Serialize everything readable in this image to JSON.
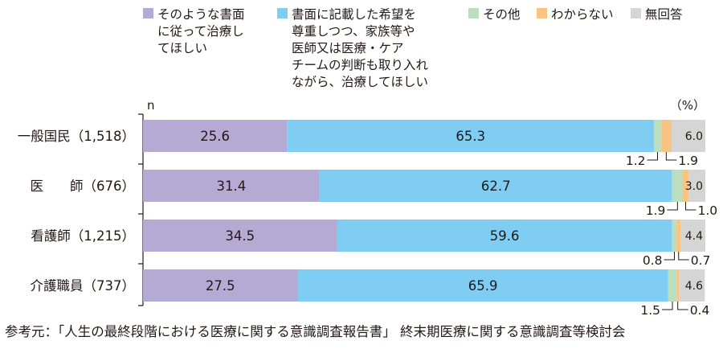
{
  "chart_data": {
    "type": "bar",
    "stacked": true,
    "orientation": "horizontal",
    "unit_label": "（%）",
    "n_label": "n",
    "categories": [
      "一般国民（1,518）",
      "医　　師（676）",
      "看護師（1,215）",
      "介護職員（737）"
    ],
    "series": [
      {
        "name": "そのような書面に従って治療してほしい",
        "legend_lines": [
          "そのような書面",
          "に従って治療し",
          "てほしい"
        ],
        "color": "#b4aad3",
        "values": [
          25.6,
          31.4,
          34.5,
          27.5
        ],
        "labels": [
          "25.6",
          "31.4",
          "34.5",
          "27.5"
        ]
      },
      {
        "name": "書面に記載した希望を尊重しつつ、家族等や医師又は医療・ケアチームの判断も取り入れながら、治療してほしい",
        "legend_lines": [
          "書面に記載した希望を",
          "尊重しつつ、家族等や",
          "医師又は医療・ケア",
          "チームの判断も取り入れ",
          "ながら、治療してほしい"
        ],
        "color": "#7fcdf2",
        "values": [
          65.3,
          62.7,
          59.6,
          65.9
        ],
        "labels": [
          "65.3",
          "62.7",
          "59.6",
          "65.9"
        ]
      },
      {
        "name": "その他",
        "legend_lines": [
          "その他"
        ],
        "color": "#b9dfbf",
        "values": [
          1.2,
          1.9,
          0.8,
          1.5
        ],
        "labels": [
          "1.2",
          "1.9",
          "0.8",
          "1.5"
        ]
      },
      {
        "name": "わからない",
        "legend_lines": [
          "わからない"
        ],
        "color": "#f8c383",
        "values": [
          1.9,
          1.0,
          0.7,
          0.4
        ],
        "labels": [
          "1.9",
          "1.0",
          "0.7",
          "0.4"
        ]
      },
      {
        "name": "無回答",
        "legend_lines": [
          "無回答"
        ],
        "color": "#d5d5d5",
        "values": [
          6.0,
          3.0,
          4.4,
          4.6
        ],
        "labels": [
          "6.0",
          "3.0",
          "4.4",
          "4.6"
        ]
      }
    ],
    "xlim": [
      0,
      100
    ],
    "legend_position": "top"
  },
  "source_note": "参考元：「人生の最終段階における医療に関する意識調査報告書」 終末期医療に関する意識調査等検討会"
}
